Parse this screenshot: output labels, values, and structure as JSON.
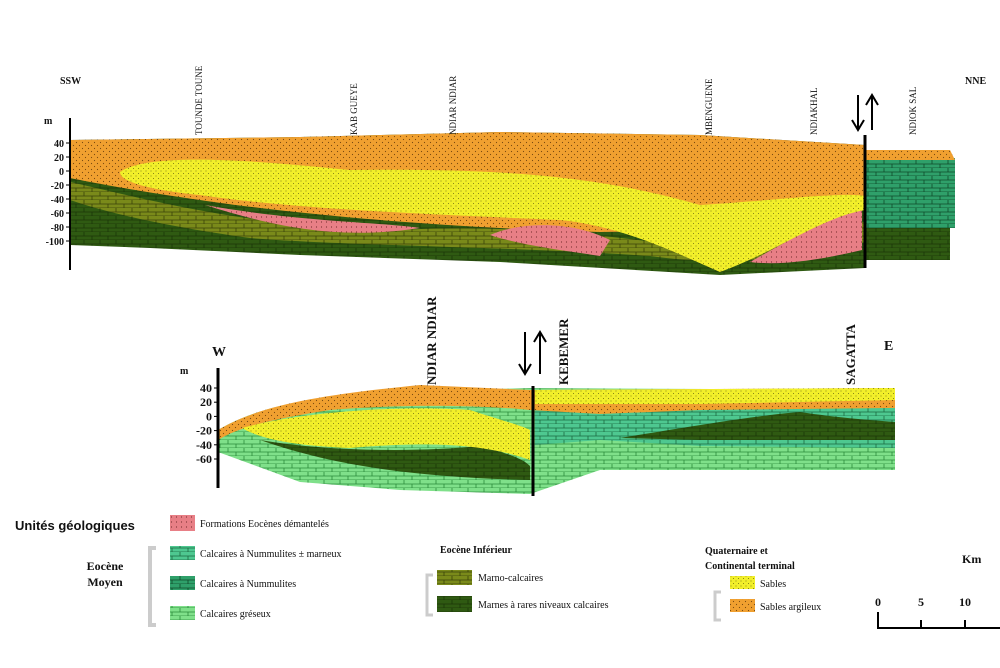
{
  "section1": {
    "left": "SSW",
    "right": "NNE",
    "unit": "m",
    "yticks": [
      40,
      20,
      0,
      -20,
      -40,
      -60,
      -80,
      -100
    ],
    "localities": [
      "TOUNDE TOUNE",
      "KAB GUEYE",
      "NDIAR NDIAR",
      "MBENGUENE",
      "NDIAKHAL",
      "NDIOK SAL"
    ]
  },
  "section2": {
    "left": "W",
    "right": "E",
    "unit": "m",
    "yticks": [
      40,
      20,
      0,
      -20,
      -40,
      -60
    ],
    "localities": [
      "NDIAR NDIAR",
      "KEBEMER",
      "SAGATTA"
    ]
  },
  "legend": {
    "title": "Unités géologiques",
    "eocene_dismantled": "Formations Eocènes démantelés",
    "eocene_middle": {
      "title": [
        "Eocène",
        "Moyen"
      ],
      "items": [
        "Calcaires à Nummulites ± marneux",
        "Calcaires à Nummulites",
        "Calcaires gréseux"
      ]
    },
    "eocene_lower": {
      "title": "Eocène Inférieur",
      "items": [
        "Marno-calcaires",
        "Marnes à rares niveaux calcaires"
      ]
    },
    "quaternary": {
      "title": [
        "Quaternaire et",
        "Continental terminal"
      ],
      "items": [
        "Sables",
        "Sables argileux"
      ]
    }
  },
  "scale": {
    "unit": "Km",
    "ticks": [
      "0",
      "5",
      "10"
    ]
  }
}
